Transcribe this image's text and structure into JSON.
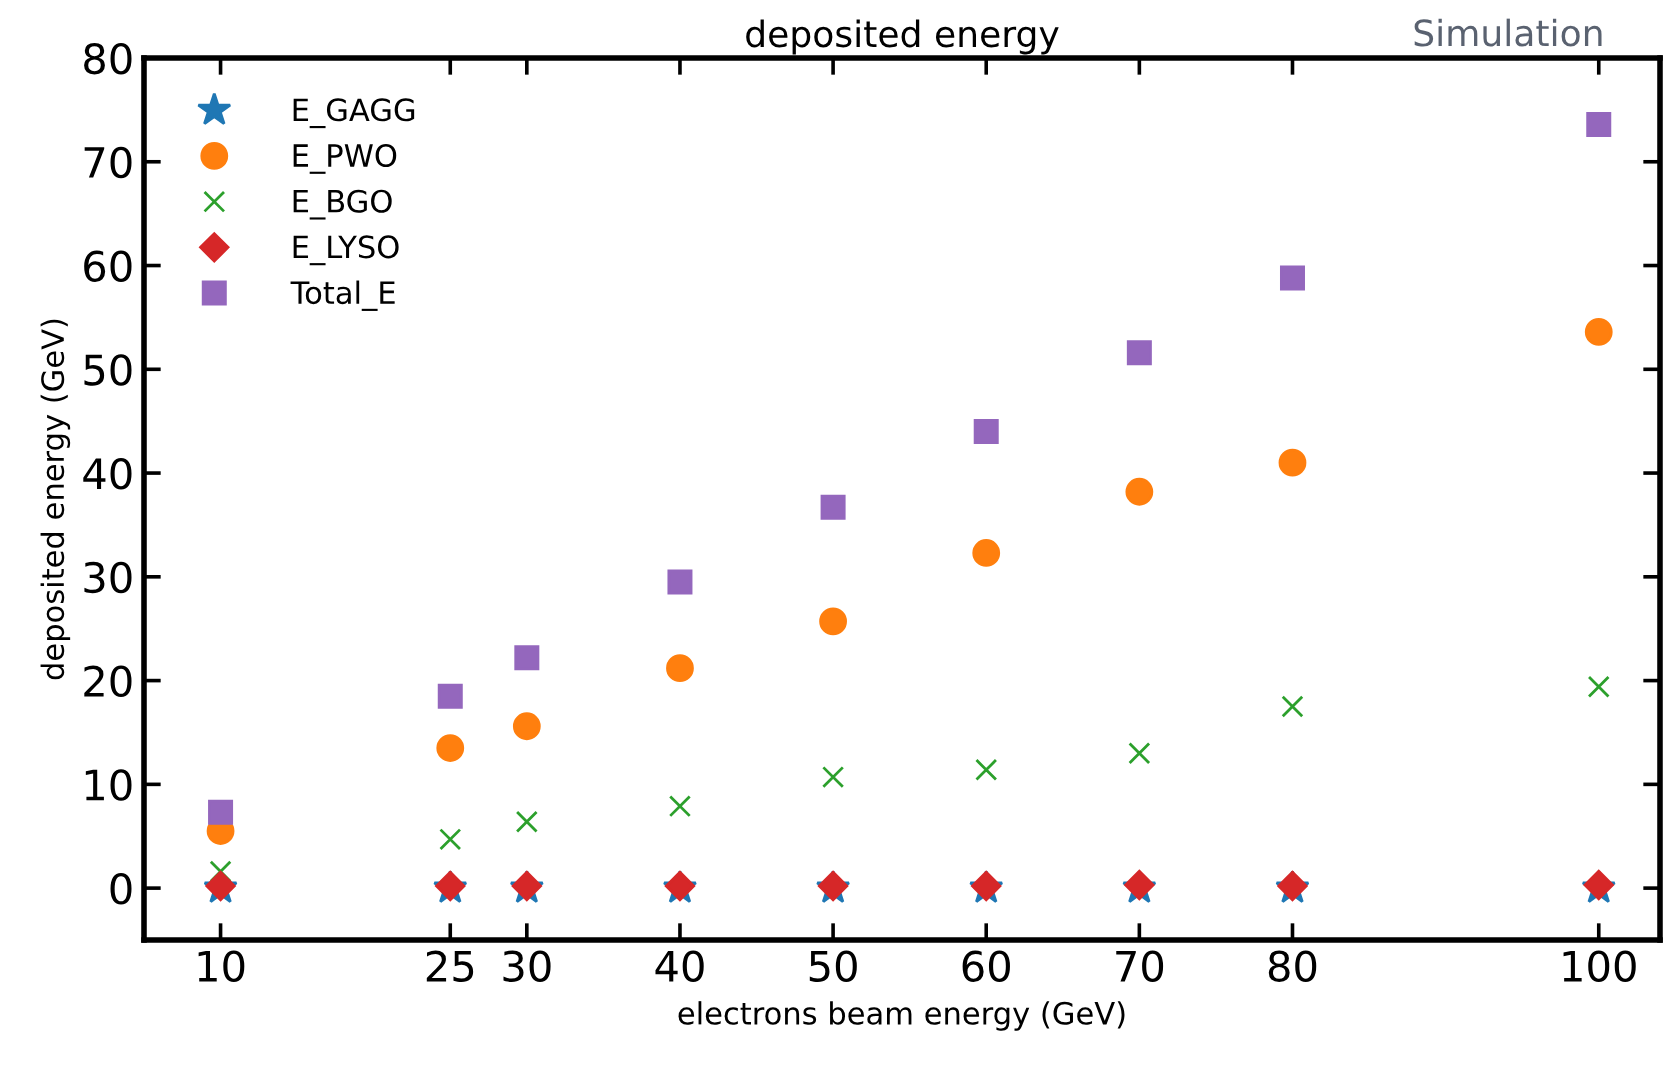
{
  "chart_data": {
    "type": "scatter",
    "title": "deposited energy",
    "xlabel": "electrons beam energy (GeV)",
    "ylabel": "deposited energy (GeV)",
    "annotations": [
      "Simulation"
    ],
    "x": [
      10,
      25,
      30,
      40,
      50,
      60,
      70,
      80,
      100
    ],
    "series": [
      {
        "name": "E_GAGG",
        "color": "#1f77b4",
        "marker": "star",
        "values": [
          0,
          0,
          0,
          0,
          0,
          0,
          0,
          0,
          0
        ]
      },
      {
        "name": "E_PWO",
        "color": "#ff7f0e",
        "marker": "circle",
        "values": [
          5.5,
          13.5,
          15.6,
          21.2,
          25.7,
          32.3,
          38.2,
          41,
          53.6
        ]
      },
      {
        "name": "E_BGO",
        "color": "#2ca02c",
        "marker": "cross",
        "values": [
          1.6,
          4.7,
          6.4,
          7.9,
          10.7,
          11.4,
          13,
          17.5,
          19.4
        ]
      },
      {
        "name": "E_LYSO",
        "color": "#d62728",
        "marker": "diamond",
        "values": [
          0.2,
          0.2,
          0.2,
          0.2,
          0.2,
          0.2,
          0.3,
          0.2,
          0.3
        ]
      },
      {
        "name": "Total_E",
        "color": "#9467bd",
        "marker": "square",
        "values": [
          7.3,
          18.5,
          22.2,
          29.5,
          36.7,
          44,
          51.6,
          58.8,
          73.6
        ]
      }
    ],
    "xlim": [
      5,
      104
    ],
    "ylim": [
      -5,
      80
    ],
    "xticks": [
      10,
      25,
      30,
      40,
      50,
      60,
      70,
      80,
      100
    ],
    "yticks": [
      0,
      10,
      20,
      30,
      40,
      50,
      60,
      70,
      80
    ],
    "grid": false,
    "legend": "top left"
  }
}
